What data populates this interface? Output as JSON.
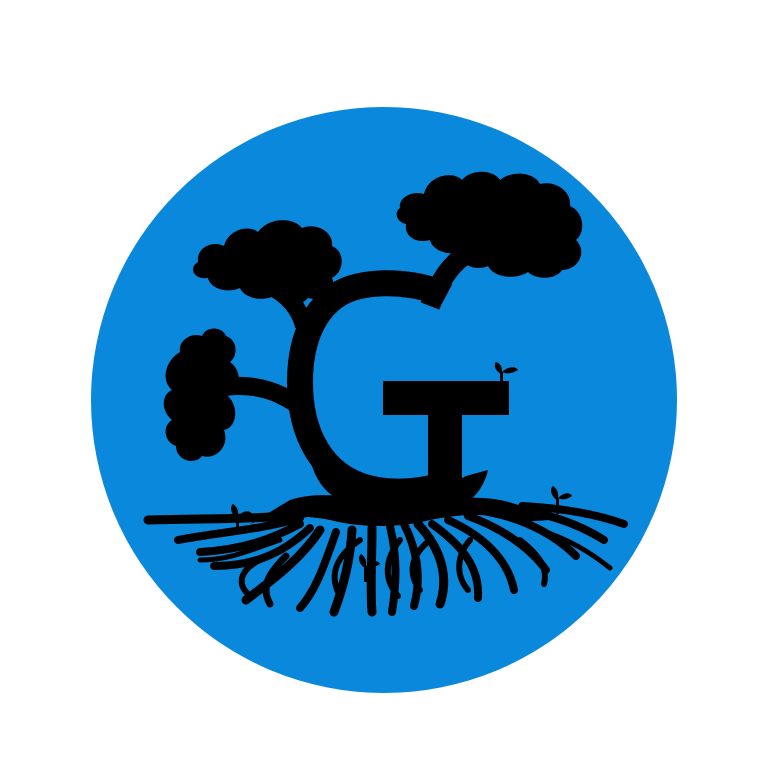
{
  "logo": {
    "letter": "G",
    "icon": "tree-with-roots-letter-g-logo"
  },
  "colors": {
    "page_background": "#ffffff",
    "circle_fill": "#0a88dc",
    "artwork_fill": "#000000"
  }
}
